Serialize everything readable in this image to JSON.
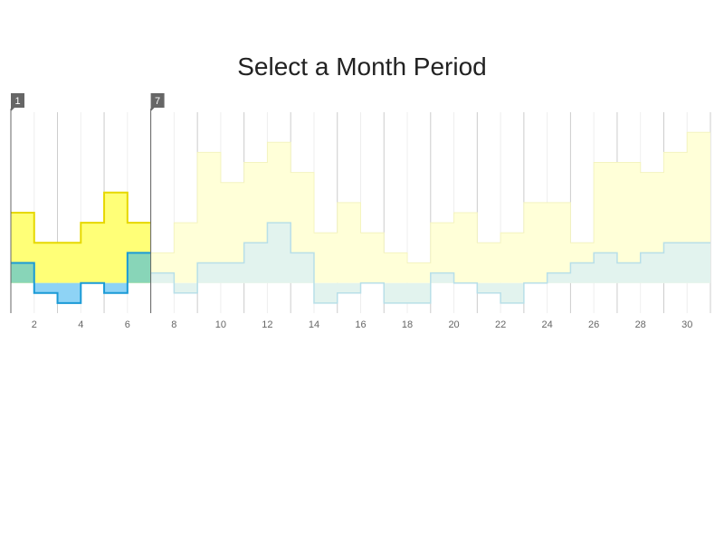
{
  "title": "Select a Month Period",
  "chart_data": {
    "type": "area",
    "title": "Select a Month Period",
    "xlabel": "",
    "ylabel": "",
    "x_range": [
      1,
      31
    ],
    "x_ticks": [
      2,
      4,
      6,
      8,
      10,
      12,
      14,
      16,
      18,
      20,
      22,
      24,
      26,
      28,
      30
    ],
    "y_range": [
      -3,
      17
    ],
    "step": true,
    "grid": true,
    "legend": "none",
    "x": [
      1,
      2,
      3,
      4,
      5,
      6,
      7,
      8,
      9,
      10,
      11,
      12,
      13,
      14,
      15,
      16,
      17,
      18,
      19,
      20,
      21,
      22,
      23,
      24,
      25,
      26,
      27,
      28,
      29,
      30
    ],
    "series": [
      {
        "color": "#ffff00",
        "values": [
          7,
          4,
          4,
          6,
          9,
          6,
          3,
          6,
          13,
          10,
          12,
          14,
          11,
          5,
          8,
          5,
          3,
          2,
          6,
          7,
          4,
          5,
          8,
          8,
          4,
          12,
          12,
          11,
          13,
          15
        ]
      },
      {
        "color": "#1ea6d8",
        "values": [
          2,
          -1,
          -2,
          0,
          -1,
          3,
          1,
          -1,
          2,
          2,
          4,
          6,
          3,
          -2,
          -1,
          0,
          -2,
          -2,
          1,
          0,
          -1,
          -2,
          0,
          1,
          2,
          3,
          2,
          3,
          4,
          4
        ]
      }
    ],
    "selection": {
      "from": 1,
      "to": 7,
      "from_label": "1",
      "to_label": "7"
    },
    "colors": {
      "selected_yellow_fill": "#ffff77",
      "selected_yellow_line": "#e6d800",
      "selected_blue_fill": "#8ed3f5",
      "selected_blue_line": "#1a9ad6",
      "selected_overlap": "#88d5b8",
      "dimmed_yellow": "#ffffd8",
      "dimmed_blue": "#e2f3ee",
      "dimmed_blue_line": "#b8dfe8"
    }
  }
}
